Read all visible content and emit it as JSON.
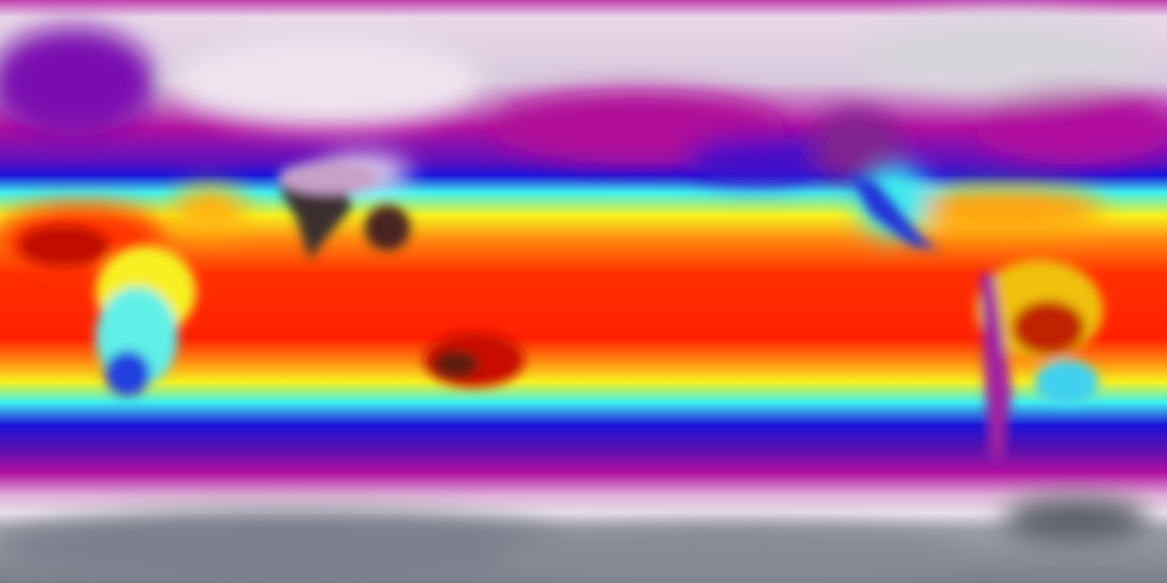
{
  "map": {
    "projection": "equirectangular",
    "colormap": [
      "#7a7f8a",
      "#e8e0ea",
      "#c010a8",
      "#1010d0",
      "#30f0ff",
      "#ffff20",
      "#ff9a10",
      "#ff2000",
      "#3a2a2a"
    ],
    "colors": {
      "polar": "#8a8e98",
      "cold": "#e8dfe8",
      "cool": "#b0109f",
      "mild": "#1a12d8",
      "temperate": "#40f0f0",
      "warm": "#f8f020",
      "hot": "#ff5008",
      "very_hot": "#ff1800",
      "extreme": "#3a2e2e"
    }
  }
}
